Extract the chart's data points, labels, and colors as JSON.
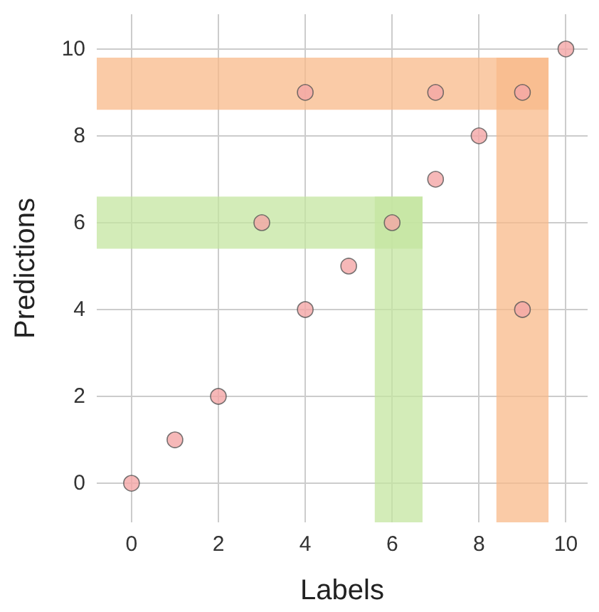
{
  "chart_data": {
    "type": "scatter",
    "xlabel": "Labels",
    "ylabel": "Predictions",
    "x": [
      0,
      1,
      2,
      3,
      4,
      4,
      5,
      6,
      7,
      7,
      8,
      9,
      9,
      10
    ],
    "values": [
      0,
      1,
      2,
      6,
      4,
      9,
      5,
      6,
      7,
      9,
      8,
      9,
      4,
      10
    ],
    "color": "#f4a6a6",
    "marker": "circle",
    "xlim": [
      -0.8,
      10.5
    ],
    "ylim": [
      -0.9,
      10.8
    ],
    "xticks": [
      0,
      2,
      4,
      6,
      8,
      10
    ],
    "yticks": [
      0,
      2,
      4,
      6,
      8,
      10
    ],
    "grid": true,
    "bands": [
      {
        "axis": "y",
        "from": 8.6,
        "to": 9.8,
        "color": "#f8b98a"
      },
      {
        "axis": "x",
        "from": 8.4,
        "to": 9.6,
        "color": "#f8b98a"
      },
      {
        "axis": "y",
        "from": 5.4,
        "to": 6.6,
        "color": "#c4e6a0"
      },
      {
        "axis": "x",
        "from": 5.6,
        "to": 6.7,
        "color": "#c4e6a0"
      }
    ]
  }
}
